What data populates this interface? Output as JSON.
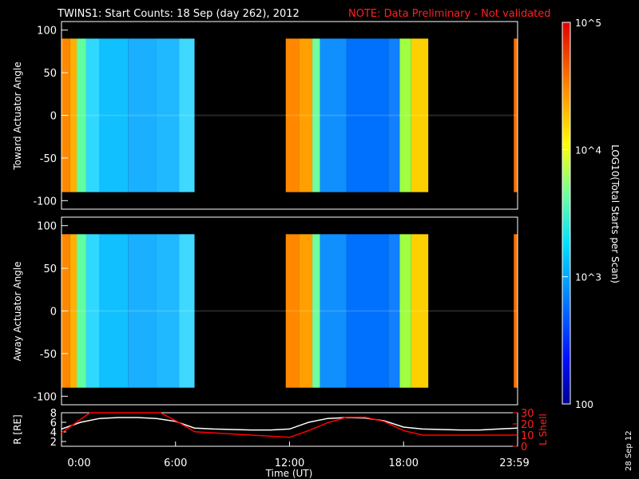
{
  "header": {
    "title": "TWINS1: Start Counts: 18 Sep (day 262), 2012",
    "note": "NOTE: Data Preliminary - Not validated"
  },
  "colorbar": {
    "label": "LOG10(Total Starts per Scan)",
    "ticks": [
      "10^5",
      "10^4",
      "10^3",
      "100"
    ],
    "range": [
      100,
      100000
    ],
    "scale": "log"
  },
  "stamp": "28 Sep 12",
  "chart_data": [
    {
      "type": "heatmap",
      "ylabel": "Toward Actuator Angle",
      "ylim": [
        -110,
        110
      ],
      "yticks": [
        "100",
        "50",
        "0",
        "-50",
        "-100"
      ],
      "data_angle_range": [
        -90,
        90
      ],
      "data_segments": [
        {
          "start_hour": 0.0,
          "end_hour": 7.0
        },
        {
          "start_hour": 11.8,
          "end_hour": 19.3
        },
        {
          "start_hour": 23.8,
          "end_hour": 24.0
        }
      ]
    },
    {
      "type": "heatmap",
      "ylabel": "Away Actuator Angle",
      "ylim": [
        -110,
        110
      ],
      "yticks": [
        "100",
        "50",
        "0",
        "-50",
        "-100"
      ],
      "data_angle_range": [
        -90,
        90
      ],
      "data_segments": [
        {
          "start_hour": 0.0,
          "end_hour": 7.0
        },
        {
          "start_hour": 11.8,
          "end_hour": 19.3
        },
        {
          "start_hour": 23.8,
          "end_hour": 24.0
        }
      ]
    },
    {
      "type": "line",
      "ylabel": "R [RE]",
      "ylabel2": "L Shell",
      "xlabel": "Time (UT)",
      "xticks": [
        "0:00",
        "6:00",
        "12:00",
        "18:00",
        "23:59"
      ],
      "yticks": [
        "8",
        "6",
        "4",
        "2"
      ],
      "y2ticks": [
        "30",
        "20",
        "10",
        "0"
      ],
      "ylim": [
        1,
        8
      ],
      "y2lim": [
        0,
        30
      ],
      "series": [
        {
          "name": "R [RE]",
          "color": "#ffffff",
          "x": [
            0,
            1,
            2,
            3,
            4,
            5,
            6,
            7,
            8,
            9,
            10,
            11,
            12,
            13,
            14,
            15,
            16,
            17,
            18,
            19,
            20,
            21,
            22,
            23,
            24
          ],
          "y": [
            4.6,
            6.0,
            6.8,
            7.0,
            7.0,
            6.8,
            6.2,
            4.8,
            4.6,
            4.5,
            4.4,
            4.4,
            4.6,
            6.0,
            6.8,
            7.0,
            6.9,
            6.3,
            5.0,
            4.6,
            4.5,
            4.4,
            4.4,
            4.6,
            4.8
          ]
        },
        {
          "name": "L Shell",
          "color": "#ff0000",
          "x": [
            0,
            1,
            1.5,
            5.2,
            6,
            7,
            8,
            9,
            10,
            11,
            12,
            13,
            14,
            15,
            16,
            17,
            18,
            19,
            20,
            21,
            22,
            23,
            24
          ],
          "y": [
            12,
            24,
            32,
            32,
            23,
            13,
            12,
            11,
            10,
            9,
            8,
            14,
            21,
            26,
            26,
            22,
            14,
            10,
            10,
            10,
            10,
            10,
            10
          ]
        }
      ]
    }
  ]
}
